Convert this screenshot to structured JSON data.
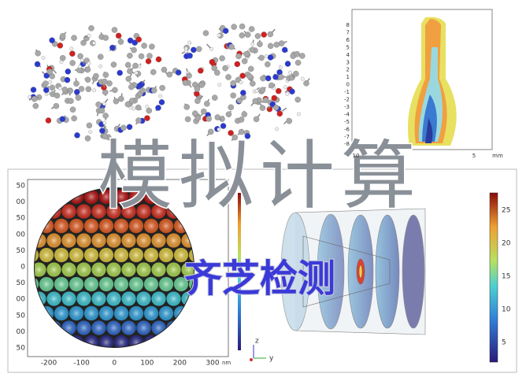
{
  "headline": "模拟计算",
  "watermark": "齐芝检测",
  "sphere_plot": {
    "y_ticks": [
      "50",
      "00",
      "50",
      "00",
      "50",
      "0",
      "50",
      "00",
      "50",
      "00",
      "50"
    ],
    "x_ticks": [
      "-200",
      "-100",
      "0",
      "100",
      "200",
      "300"
    ],
    "x_unit": "nm"
  },
  "triad": {
    "z": "z",
    "y": "y"
  },
  "colorbar": {
    "ticks": [
      "25",
      "20",
      "15",
      "10",
      "5"
    ]
  },
  "contour_plot": {
    "y_ticks": [
      "8",
      "7",
      "6",
      "5",
      "4",
      "3",
      "2",
      "1",
      "0",
      "-1",
      "-2",
      "-3",
      "-4",
      "-5",
      "-6",
      "-7",
      "-8"
    ],
    "x_ticks": [
      "10",
      "5"
    ],
    "x_unit": "mm"
  }
}
